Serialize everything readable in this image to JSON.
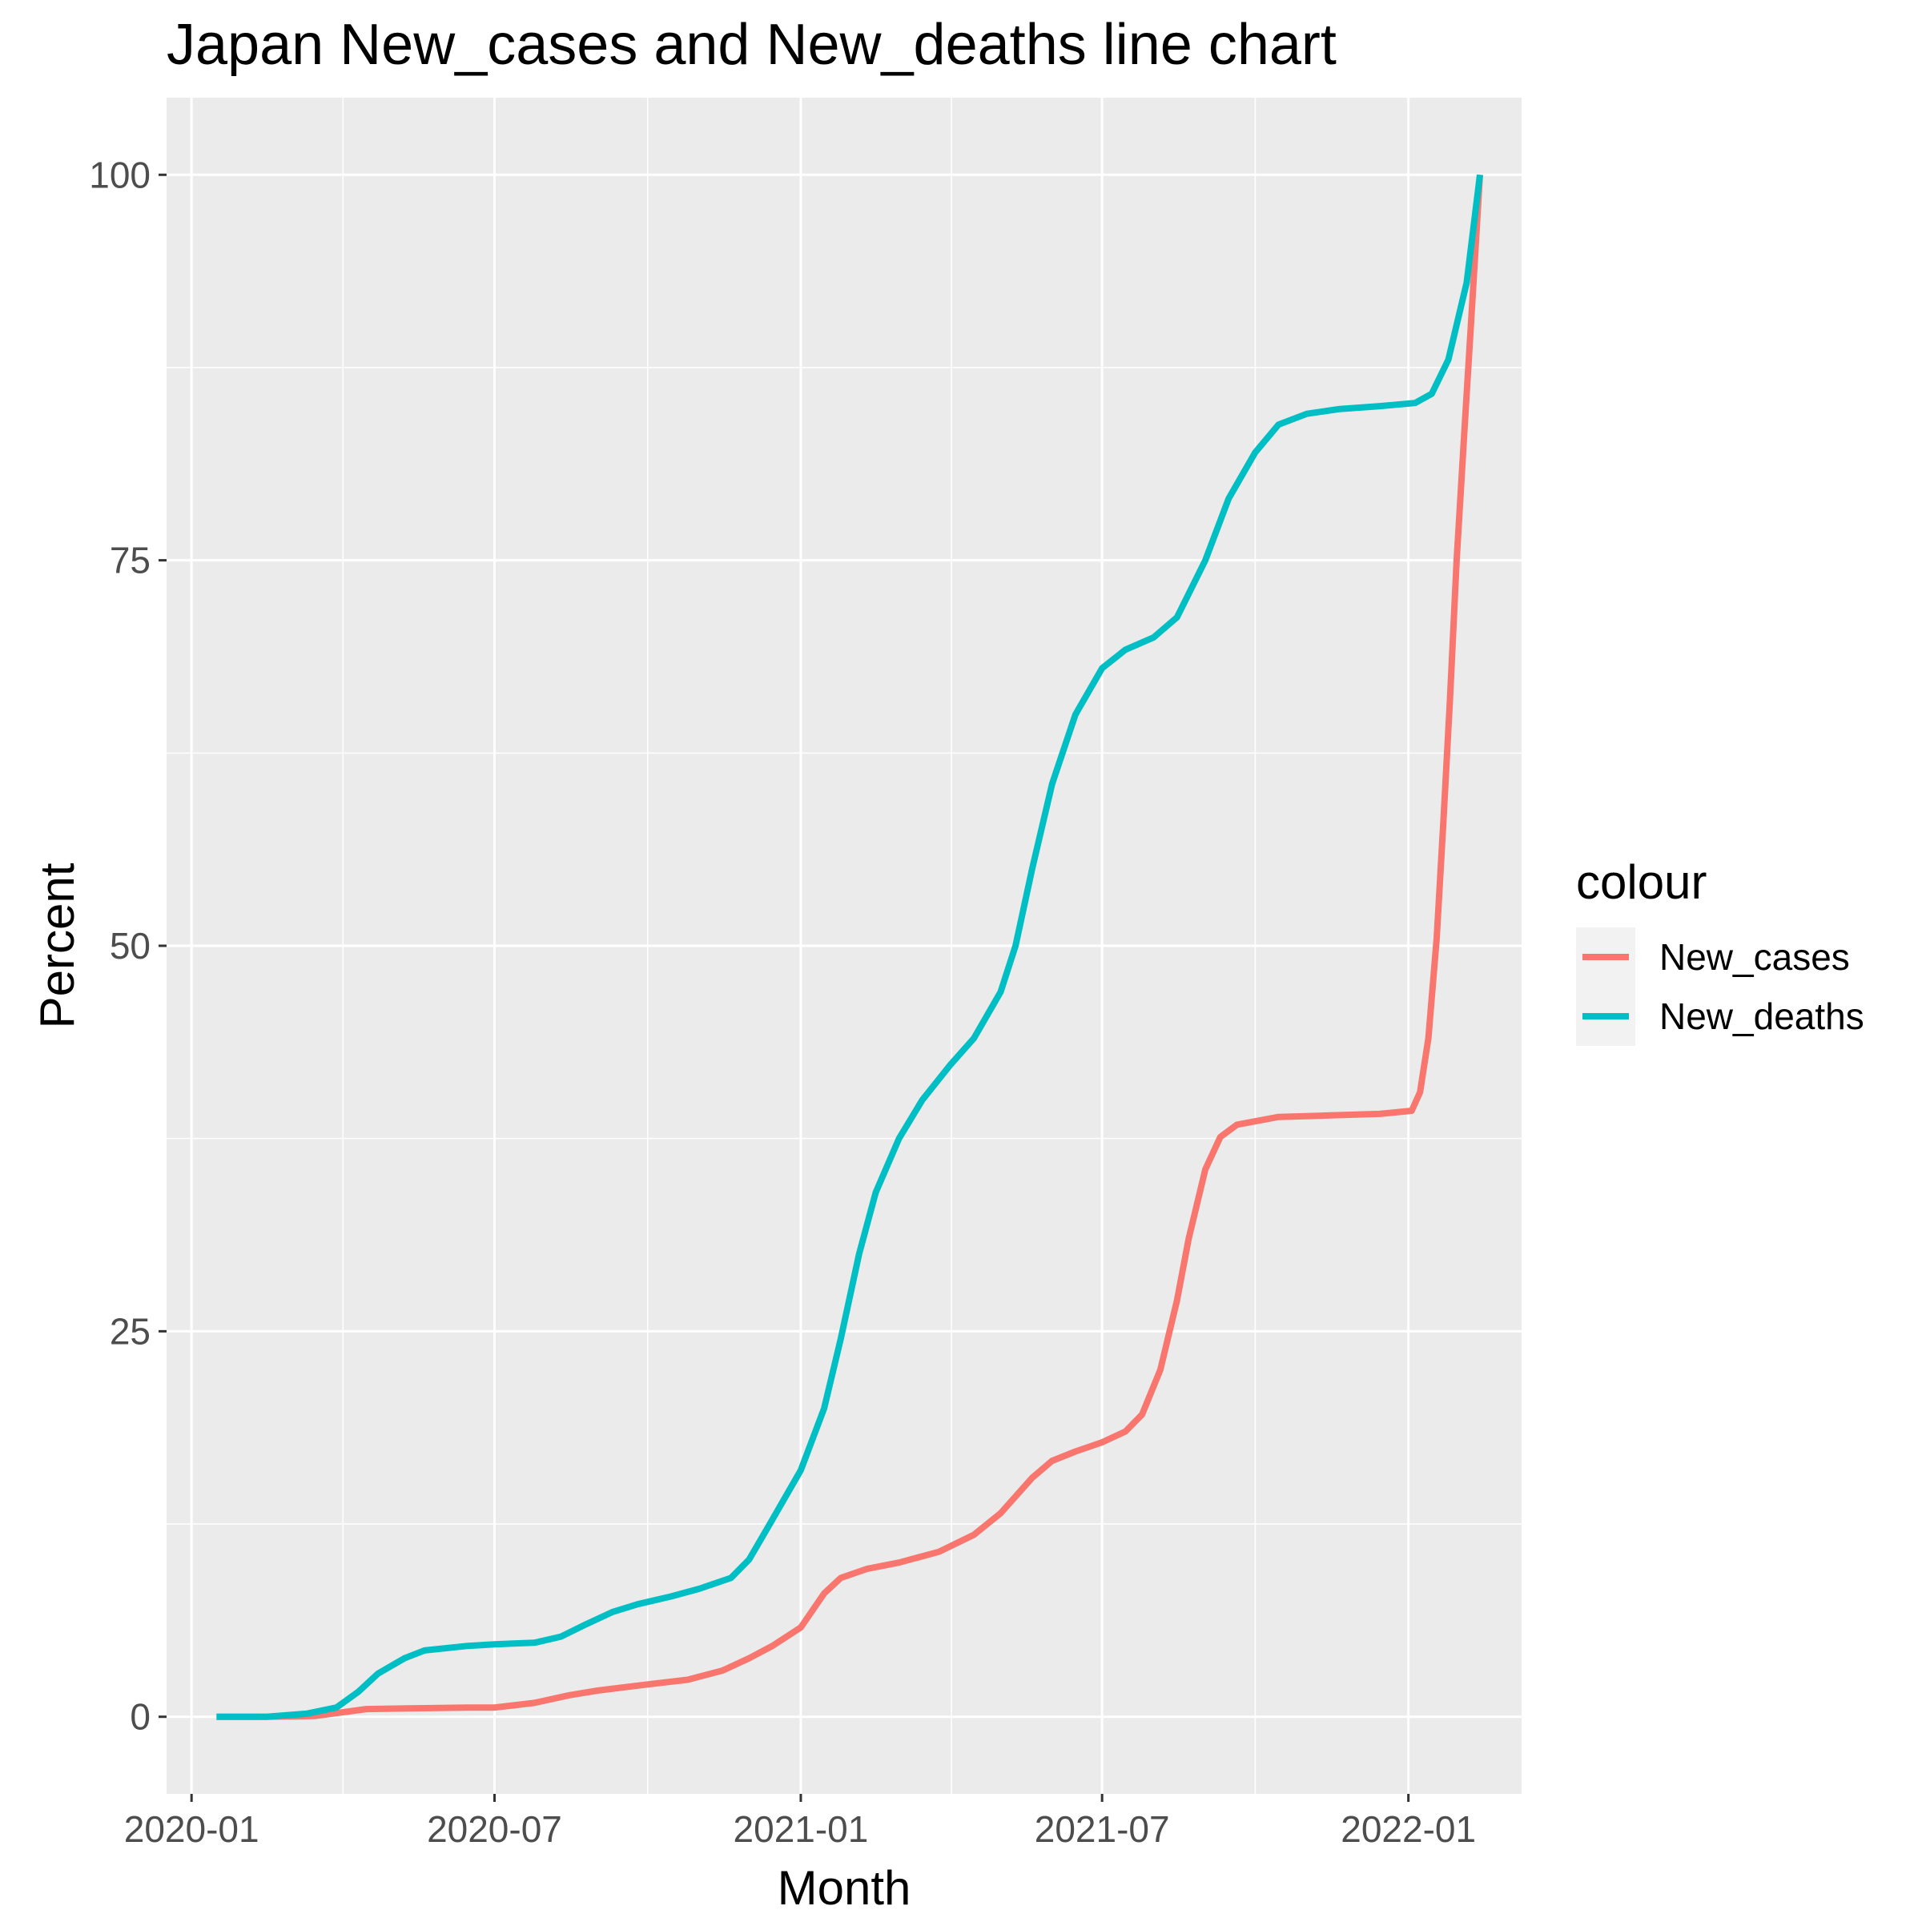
{
  "chart_data": {
    "type": "line",
    "title": "Japan  New_cases and New_deaths line chart",
    "xlabel": "Month",
    "ylabel": "Percent",
    "x_ticks": [
      "2020-01",
      "2020-07",
      "2021-01",
      "2021-07",
      "2022-01"
    ],
    "y_ticks": [
      0,
      25,
      50,
      75,
      100
    ],
    "ylim": [
      -5,
      105
    ],
    "xlim": [
      "2019-12-17",
      "2022-03-10"
    ],
    "grid": true,
    "legend": {
      "title": "colour",
      "position": "right"
    },
    "series": [
      {
        "name": "New_cases",
        "color": "#F8766D",
        "points": [
          [
            "2020-01-16",
            0
          ],
          [
            "2020-02-15",
            0
          ],
          [
            "2020-03-15",
            0.05
          ],
          [
            "2020-04-15",
            0.5
          ],
          [
            "2020-05-15",
            0.55
          ],
          [
            "2020-06-15",
            0.6
          ],
          [
            "2020-07-01",
            0.6
          ],
          [
            "2020-07-25",
            0.9
          ],
          [
            "2020-08-15",
            1.4
          ],
          [
            "2020-09-01",
            1.7
          ],
          [
            "2020-10-01",
            2.1
          ],
          [
            "2020-10-25",
            2.4
          ],
          [
            "2020-11-15",
            3.0
          ],
          [
            "2020-12-01",
            3.8
          ],
          [
            "2020-12-15",
            4.6
          ],
          [
            "2021-01-01",
            5.8
          ],
          [
            "2021-01-15",
            8.0
          ],
          [
            "2021-01-25",
            9.0
          ],
          [
            "2021-02-10",
            9.6
          ],
          [
            "2021-03-01",
            10.0
          ],
          [
            "2021-03-25",
            10.7
          ],
          [
            "2021-04-15",
            11.8
          ],
          [
            "2021-05-01",
            13.2
          ],
          [
            "2021-05-20",
            15.5
          ],
          [
            "2021-06-01",
            16.6
          ],
          [
            "2021-06-15",
            17.2
          ],
          [
            "2021-07-01",
            17.8
          ],
          [
            "2021-07-15",
            18.5
          ],
          [
            "2021-07-25",
            19.6
          ],
          [
            "2021-08-05",
            22.5
          ],
          [
            "2021-08-15",
            27.0
          ],
          [
            "2021-08-22",
            31.0
          ],
          [
            "2021-09-01",
            35.5
          ],
          [
            "2021-09-10",
            37.6
          ],
          [
            "2021-09-20",
            38.4
          ],
          [
            "2021-10-15",
            38.9
          ],
          [
            "2021-11-15",
            39.0
          ],
          [
            "2021-12-15",
            39.1
          ],
          [
            "2022-01-03",
            39.3
          ],
          [
            "2022-01-08",
            40.5
          ],
          [
            "2022-01-13",
            44.0
          ],
          [
            "2022-01-18",
            50.5
          ],
          [
            "2022-01-22",
            58.0
          ],
          [
            "2022-01-26",
            66.0
          ],
          [
            "2022-01-30",
            75.0
          ],
          [
            "2022-02-04",
            84.0
          ],
          [
            "2022-02-08",
            91.0
          ],
          [
            "2022-02-13",
            100.0
          ]
        ]
      },
      {
        "name": "New_deaths",
        "color": "#00BFC4",
        "points": [
          [
            "2020-01-16",
            0
          ],
          [
            "2020-02-15",
            0
          ],
          [
            "2020-03-10",
            0.2
          ],
          [
            "2020-03-28",
            0.6
          ],
          [
            "2020-04-10",
            1.6
          ],
          [
            "2020-04-22",
            2.8
          ],
          [
            "2020-05-08",
            3.8
          ],
          [
            "2020-05-20",
            4.3
          ],
          [
            "2020-06-15",
            4.6
          ],
          [
            "2020-07-01",
            4.7
          ],
          [
            "2020-07-25",
            4.8
          ],
          [
            "2020-08-10",
            5.2
          ],
          [
            "2020-08-25",
            6.0
          ],
          [
            "2020-09-10",
            6.8
          ],
          [
            "2020-09-25",
            7.3
          ],
          [
            "2020-10-15",
            7.8
          ],
          [
            "2020-11-01",
            8.3
          ],
          [
            "2020-11-20",
            9.0
          ],
          [
            "2020-12-01",
            10.2
          ],
          [
            "2020-12-15",
            12.8
          ],
          [
            "2021-01-01",
            16.0
          ],
          [
            "2021-01-15",
            20.0
          ],
          [
            "2021-01-25",
            24.5
          ],
          [
            "2021-02-05",
            30.0
          ],
          [
            "2021-02-15",
            34.0
          ],
          [
            "2021-03-01",
            37.5
          ],
          [
            "2021-03-15",
            40.0
          ],
          [
            "2021-04-01",
            42.3
          ],
          [
            "2021-04-15",
            44.0
          ],
          [
            "2021-05-01",
            47.0
          ],
          [
            "2021-05-10",
            50.0
          ],
          [
            "2021-05-20",
            55.0
          ],
          [
            "2021-06-01",
            60.5
          ],
          [
            "2021-06-15",
            65.0
          ],
          [
            "2021-07-01",
            68.0
          ],
          [
            "2021-07-15",
            69.2
          ],
          [
            "2021-08-01",
            70.0
          ],
          [
            "2021-08-15",
            71.3
          ],
          [
            "2021-09-01",
            75.0
          ],
          [
            "2021-09-15",
            79.0
          ],
          [
            "2021-10-01",
            82.0
          ],
          [
            "2021-10-15",
            83.8
          ],
          [
            "2021-11-01",
            84.5
          ],
          [
            "2021-11-20",
            84.8
          ],
          [
            "2021-12-15",
            85.0
          ],
          [
            "2022-01-05",
            85.2
          ],
          [
            "2022-01-15",
            85.8
          ],
          [
            "2022-01-25",
            88.0
          ],
          [
            "2022-02-05",
            93.0
          ],
          [
            "2022-02-13",
            100.0
          ]
        ]
      }
    ]
  }
}
